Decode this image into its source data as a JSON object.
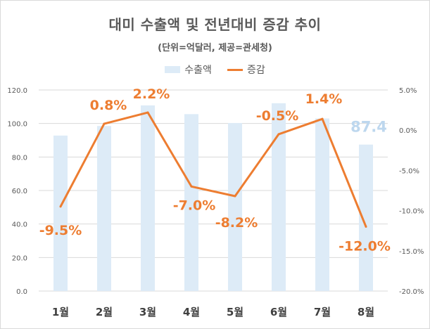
{
  "chart_data": {
    "type": "bar+line",
    "title": "대미 수출액 및 전년대비 증감 추이",
    "subtitle": "(단위=억달러, 제공=관세청)",
    "categories": [
      "1월",
      "2월",
      "3월",
      "4월",
      "5월",
      "6월",
      "7월",
      "8월"
    ],
    "series": [
      {
        "name": "수출액",
        "type": "bar",
        "axis": "left",
        "color": "#ddebf7",
        "values": [
          92.8,
          98.5,
          110.8,
          105.6,
          100.3,
          112.1,
          103.0,
          87.4
        ],
        "labels": [
          "",
          "",
          "",
          "",
          "",
          "",
          "",
          "87.4"
        ]
      },
      {
        "name": "증감",
        "type": "line",
        "axis": "right",
        "color": "#ed7d31",
        "values": [
          -9.5,
          0.8,
          2.2,
          -7.0,
          -8.2,
          -0.5,
          1.4,
          -12.0
        ],
        "labels": [
          "-9.5%",
          "0.8%",
          "2.2%",
          "-7.0%",
          "-8.2%",
          "-0.5%",
          "1.4%",
          "-12.0%"
        ]
      }
    ],
    "y_left": {
      "min": 0,
      "max": 120,
      "step": 20,
      "tick_labels": [
        "0.0",
        "20.0",
        "40.0",
        "60.0",
        "80.0",
        "100.0",
        "120.0"
      ]
    },
    "y_right": {
      "min": -20,
      "max": 5,
      "step": 5,
      "tick_labels": [
        "-20.0%",
        "-15.0%",
        "-10.0%",
        "-5.0%",
        "0.0%",
        "5.0%"
      ]
    },
    "grid": true,
    "legend": "top"
  }
}
